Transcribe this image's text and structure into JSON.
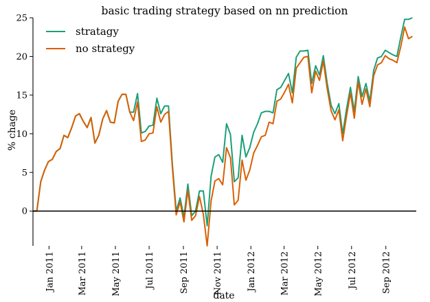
{
  "chart_data": {
    "type": "line",
    "title": "basic trading strategy based on nn prediction",
    "xlabel": "date",
    "ylabel": "% chage",
    "ylim": [
      -4.5,
      25
    ],
    "xlim": [
      "2010-12-03",
      "2012-10-26"
    ],
    "yticks": [
      0,
      5,
      10,
      15,
      20,
      25
    ],
    "xticks": [
      {
        "date": "2011-01-01",
        "label": "Jan 2011"
      },
      {
        "date": "2011-03-01",
        "label": "Mar 2011"
      },
      {
        "date": "2011-05-01",
        "label": "May 2011"
      },
      {
        "date": "2011-07-01",
        "label": "Jul 2011"
      },
      {
        "date": "2011-09-01",
        "label": "Sep 2011"
      },
      {
        "date": "2011-11-01",
        "label": "Nov 2011"
      },
      {
        "date": "2012-01-01",
        "label": "Jan 2012"
      },
      {
        "date": "2012-03-01",
        "label": "Mar 2012"
      },
      {
        "date": "2012-05-01",
        "label": "May 2012"
      },
      {
        "date": "2012-07-01",
        "label": "Jul 2012"
      },
      {
        "date": "2012-09-01",
        "label": "Sep 2012"
      }
    ],
    "grid": false,
    "zero_line": true,
    "legend_position": "top-left",
    "series": [
      {
        "name": "stratagy",
        "color": "#1b9e77",
        "points": [
          [
            "2010-12-03",
            0.0
          ],
          [
            "2010-12-10",
            0.0
          ],
          [
            "2010-12-17",
            3.8
          ],
          [
            "2010-12-24",
            5.3
          ],
          [
            "2010-12-31",
            6.4
          ],
          [
            "2011-01-07",
            6.7
          ],
          [
            "2011-01-14",
            7.7
          ],
          [
            "2011-01-21",
            8.1
          ],
          [
            "2011-01-28",
            9.8
          ],
          [
            "2011-02-04",
            9.5
          ],
          [
            "2011-02-11",
            10.8
          ],
          [
            "2011-02-18",
            12.3
          ],
          [
            "2011-02-25",
            12.6
          ],
          [
            "2011-03-04",
            11.6
          ],
          [
            "2011-03-11",
            10.8
          ],
          [
            "2011-03-18",
            12.1
          ],
          [
            "2011-03-25",
            8.8
          ],
          [
            "2011-04-01",
            9.8
          ],
          [
            "2011-04-08",
            11.9
          ],
          [
            "2011-04-15",
            13.0
          ],
          [
            "2011-04-22",
            11.5
          ],
          [
            "2011-04-29",
            11.4
          ],
          [
            "2011-05-06",
            14.2
          ],
          [
            "2011-05-13",
            15.1
          ],
          [
            "2011-05-20",
            15.1
          ],
          [
            "2011-05-27",
            12.8
          ],
          [
            "2011-06-03",
            12.8
          ],
          [
            "2011-06-10",
            15.2
          ],
          [
            "2011-06-17",
            10.1
          ],
          [
            "2011-06-24",
            10.3
          ],
          [
            "2011-07-01",
            11.0
          ],
          [
            "2011-07-08",
            11.1
          ],
          [
            "2011-07-15",
            14.6
          ],
          [
            "2011-07-22",
            12.6
          ],
          [
            "2011-07-29",
            13.6
          ],
          [
            "2011-08-05",
            13.6
          ],
          [
            "2011-08-12",
            6.1
          ],
          [
            "2011-08-19",
            0.0
          ],
          [
            "2011-08-26",
            1.7
          ],
          [
            "2011-09-02",
            -0.8
          ],
          [
            "2011-09-09",
            3.5
          ],
          [
            "2011-09-16",
            -0.6
          ],
          [
            "2011-09-23",
            0.0
          ],
          [
            "2011-09-30",
            2.6
          ],
          [
            "2011-10-07",
            2.6
          ],
          [
            "2011-10-14",
            -1.9
          ],
          [
            "2011-10-21",
            4.5
          ],
          [
            "2011-10-28",
            7.0
          ],
          [
            "2011-11-04",
            7.3
          ],
          [
            "2011-11-11",
            6.3
          ],
          [
            "2011-11-18",
            11.3
          ],
          [
            "2011-11-25",
            9.9
          ],
          [
            "2011-12-02",
            3.8
          ],
          [
            "2011-12-09",
            4.3
          ],
          [
            "2011-12-16",
            9.8
          ],
          [
            "2011-12-23",
            7.0
          ],
          [
            "2011-12-30",
            8.2
          ],
          [
            "2012-01-06",
            10.2
          ],
          [
            "2012-01-13",
            11.3
          ],
          [
            "2012-01-20",
            12.7
          ],
          [
            "2012-01-27",
            12.9
          ],
          [
            "2012-02-03",
            12.9
          ],
          [
            "2012-02-10",
            12.7
          ],
          [
            "2012-02-17",
            15.7
          ],
          [
            "2012-02-24",
            16.0
          ],
          [
            "2012-03-02",
            16.9
          ],
          [
            "2012-03-09",
            17.8
          ],
          [
            "2012-03-16",
            15.3
          ],
          [
            "2012-03-23",
            19.9
          ],
          [
            "2012-03-30",
            20.7
          ],
          [
            "2012-04-06",
            20.7
          ],
          [
            "2012-04-13",
            20.8
          ],
          [
            "2012-04-20",
            16.5
          ],
          [
            "2012-04-27",
            18.8
          ],
          [
            "2012-05-04",
            17.6
          ],
          [
            "2012-05-11",
            20.1
          ],
          [
            "2012-05-18",
            16.5
          ],
          [
            "2012-05-25",
            13.7
          ],
          [
            "2012-06-01",
            12.6
          ],
          [
            "2012-06-08",
            13.9
          ],
          [
            "2012-06-15",
            10.0
          ],
          [
            "2012-06-22",
            13.2
          ],
          [
            "2012-06-29",
            16.0
          ],
          [
            "2012-07-06",
            12.9
          ],
          [
            "2012-07-13",
            17.4
          ],
          [
            "2012-07-20",
            14.8
          ],
          [
            "2012-07-27",
            16.5
          ],
          [
            "2012-08-03",
            14.2
          ],
          [
            "2012-08-10",
            18.2
          ],
          [
            "2012-08-17",
            19.8
          ],
          [
            "2012-08-24",
            20.0
          ],
          [
            "2012-08-31",
            20.8
          ],
          [
            "2012-09-07",
            20.5
          ],
          [
            "2012-09-14",
            20.2
          ],
          [
            "2012-09-21",
            20.0
          ],
          [
            "2012-09-28",
            22.5
          ],
          [
            "2012-10-05",
            24.8
          ],
          [
            "2012-10-12",
            24.8
          ],
          [
            "2012-10-19",
            25.0
          ]
        ]
      },
      {
        "name": "no strategy",
        "color": "#d95f02",
        "points": [
          [
            "2010-12-03",
            0.0
          ],
          [
            "2010-12-10",
            0.0
          ],
          [
            "2010-12-17",
            3.8
          ],
          [
            "2010-12-24",
            5.3
          ],
          [
            "2010-12-31",
            6.4
          ],
          [
            "2011-01-07",
            6.7
          ],
          [
            "2011-01-14",
            7.7
          ],
          [
            "2011-01-21",
            8.1
          ],
          [
            "2011-01-28",
            9.8
          ],
          [
            "2011-02-04",
            9.5
          ],
          [
            "2011-02-11",
            10.8
          ],
          [
            "2011-02-18",
            12.3
          ],
          [
            "2011-02-25",
            12.6
          ],
          [
            "2011-03-04",
            11.6
          ],
          [
            "2011-03-11",
            10.8
          ],
          [
            "2011-03-18",
            12.1
          ],
          [
            "2011-03-25",
            8.8
          ],
          [
            "2011-04-01",
            9.8
          ],
          [
            "2011-04-08",
            11.9
          ],
          [
            "2011-04-15",
            13.0
          ],
          [
            "2011-04-22",
            11.5
          ],
          [
            "2011-04-29",
            11.4
          ],
          [
            "2011-05-06",
            14.2
          ],
          [
            "2011-05-13",
            15.1
          ],
          [
            "2011-05-20",
            15.1
          ],
          [
            "2011-05-27",
            12.8
          ],
          [
            "2011-06-03",
            11.7
          ],
          [
            "2011-06-10",
            14.1
          ],
          [
            "2011-06-17",
            9.0
          ],
          [
            "2011-06-24",
            9.2
          ],
          [
            "2011-07-01",
            10.0
          ],
          [
            "2011-07-08",
            10.1
          ],
          [
            "2011-07-15",
            13.5
          ],
          [
            "2011-07-22",
            11.5
          ],
          [
            "2011-07-29",
            12.5
          ],
          [
            "2011-08-05",
            12.9
          ],
          [
            "2011-08-12",
            5.7
          ],
          [
            "2011-08-19",
            -0.5
          ],
          [
            "2011-08-26",
            1.2
          ],
          [
            "2011-09-02",
            -1.4
          ],
          [
            "2011-09-09",
            2.7
          ],
          [
            "2011-09-16",
            -1.2
          ],
          [
            "2011-09-23",
            -0.6
          ],
          [
            "2011-09-30",
            1.9
          ],
          [
            "2011-10-07",
            -0.4
          ],
          [
            "2011-10-14",
            -4.5
          ],
          [
            "2011-10-21",
            1.3
          ],
          [
            "2011-10-28",
            3.9
          ],
          [
            "2011-11-04",
            4.2
          ],
          [
            "2011-11-11",
            3.4
          ],
          [
            "2011-11-18",
            8.2
          ],
          [
            "2011-11-25",
            6.9
          ],
          [
            "2011-12-02",
            0.8
          ],
          [
            "2011-12-09",
            1.4
          ],
          [
            "2011-12-16",
            6.6
          ],
          [
            "2011-12-23",
            4.0
          ],
          [
            "2011-12-30",
            5.3
          ],
          [
            "2012-01-06",
            7.5
          ],
          [
            "2012-01-13",
            8.5
          ],
          [
            "2012-01-20",
            9.6
          ],
          [
            "2012-01-27",
            9.8
          ],
          [
            "2012-02-03",
            11.5
          ],
          [
            "2012-02-10",
            11.3
          ],
          [
            "2012-02-17",
            14.2
          ],
          [
            "2012-02-24",
            14.5
          ],
          [
            "2012-03-02",
            15.4
          ],
          [
            "2012-03-09",
            16.4
          ],
          [
            "2012-03-16",
            14.0
          ],
          [
            "2012-03-23",
            18.5
          ],
          [
            "2012-03-30",
            19.2
          ],
          [
            "2012-04-06",
            19.9
          ],
          [
            "2012-04-13",
            20.0
          ],
          [
            "2012-04-20",
            15.3
          ],
          [
            "2012-04-27",
            18.1
          ],
          [
            "2012-05-04",
            16.9
          ],
          [
            "2012-05-11",
            19.4
          ],
          [
            "2012-05-18",
            15.8
          ],
          [
            "2012-05-25",
            13.0
          ],
          [
            "2012-06-01",
            11.8
          ],
          [
            "2012-06-08",
            13.1
          ],
          [
            "2012-06-15",
            9.1
          ],
          [
            "2012-06-22",
            12.3
          ],
          [
            "2012-06-29",
            15.3
          ],
          [
            "2012-07-06",
            12.0
          ],
          [
            "2012-07-13",
            16.7
          ],
          [
            "2012-07-20",
            13.8
          ],
          [
            "2012-07-27",
            15.8
          ],
          [
            "2012-08-03",
            13.5
          ],
          [
            "2012-08-10",
            17.5
          ],
          [
            "2012-08-17",
            18.9
          ],
          [
            "2012-08-24",
            19.2
          ],
          [
            "2012-08-31",
            20.1
          ],
          [
            "2012-09-07",
            19.7
          ],
          [
            "2012-09-14",
            19.5
          ],
          [
            "2012-09-21",
            19.2
          ],
          [
            "2012-09-28",
            21.3
          ],
          [
            "2012-10-05",
            23.8
          ],
          [
            "2012-10-12",
            22.3
          ],
          [
            "2012-10-19",
            22.6
          ]
        ]
      }
    ]
  }
}
